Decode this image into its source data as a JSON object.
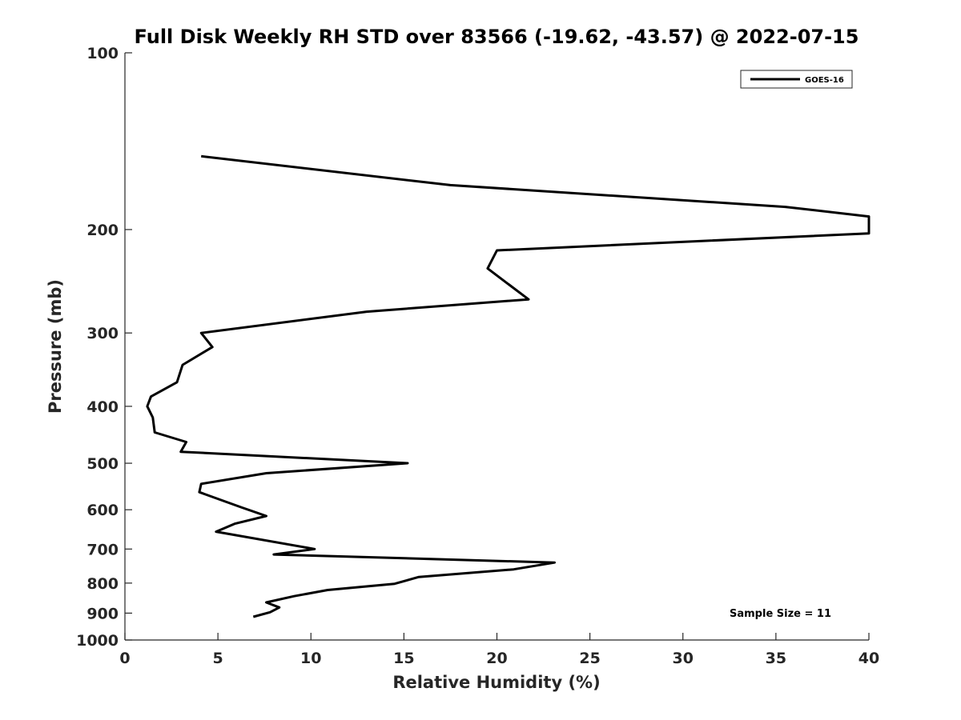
{
  "chart_data": {
    "type": "line",
    "title": "Full Disk Weekly RH STD over 83566 (-19.62, -43.57) @ 2022-07-15",
    "xlabel": "Relative Humidity (%)",
    "ylabel": "Pressure (mb)",
    "xlim": [
      0,
      40
    ],
    "ylim": [
      100,
      1000
    ],
    "yscale": "log",
    "yreversed": true,
    "x_ticks": [
      0,
      5,
      10,
      15,
      20,
      25,
      30,
      35,
      40
    ],
    "y_ticks": [
      100,
      200,
      300,
      400,
      500,
      600,
      700,
      800,
      900,
      1000
    ],
    "grid": false,
    "legend": {
      "position": "top-right",
      "entries": [
        "GOES-16"
      ]
    },
    "annotation": "Sample Size = 11",
    "series": [
      {
        "name": "GOES-16",
        "color": "#000000",
        "points": [
          {
            "x": 4.1,
            "p": 150
          },
          {
            "x": 17.5,
            "p": 168
          },
          {
            "x": 35.5,
            "p": 183
          },
          {
            "x": 40,
            "p": 190
          },
          {
            "x": 40,
            "p": 203
          },
          {
            "x": 20.0,
            "p": 217
          },
          {
            "x": 19.5,
            "p": 233
          },
          {
            "x": 21.7,
            "p": 263
          },
          {
            "x": 13.0,
            "p": 276
          },
          {
            "x": 4.1,
            "p": 300
          },
          {
            "x": 4.7,
            "p": 317
          },
          {
            "x": 3.1,
            "p": 340
          },
          {
            "x": 2.8,
            "p": 364
          },
          {
            "x": 1.4,
            "p": 385
          },
          {
            "x": 1.2,
            "p": 400
          },
          {
            "x": 1.5,
            "p": 418
          },
          {
            "x": 1.6,
            "p": 443
          },
          {
            "x": 3.3,
            "p": 460
          },
          {
            "x": 3.0,
            "p": 478
          },
          {
            "x": 15.2,
            "p": 500
          },
          {
            "x": 7.6,
            "p": 520
          },
          {
            "x": 4.1,
            "p": 542
          },
          {
            "x": 4.0,
            "p": 560
          },
          {
            "x": 6.3,
            "p": 595
          },
          {
            "x": 7.6,
            "p": 615
          },
          {
            "x": 5.9,
            "p": 634
          },
          {
            "x": 4.9,
            "p": 654
          },
          {
            "x": 10.2,
            "p": 700
          },
          {
            "x": 8.0,
            "p": 715
          },
          {
            "x": 23.1,
            "p": 738
          },
          {
            "x": 20.9,
            "p": 758
          },
          {
            "x": 15.8,
            "p": 781
          },
          {
            "x": 14.5,
            "p": 802
          },
          {
            "x": 10.9,
            "p": 822
          },
          {
            "x": 9.1,
            "p": 842
          },
          {
            "x": 7.6,
            "p": 863
          },
          {
            "x": 8.3,
            "p": 880
          },
          {
            "x": 7.8,
            "p": 897
          },
          {
            "x": 6.9,
            "p": 913
          }
        ]
      }
    ]
  }
}
